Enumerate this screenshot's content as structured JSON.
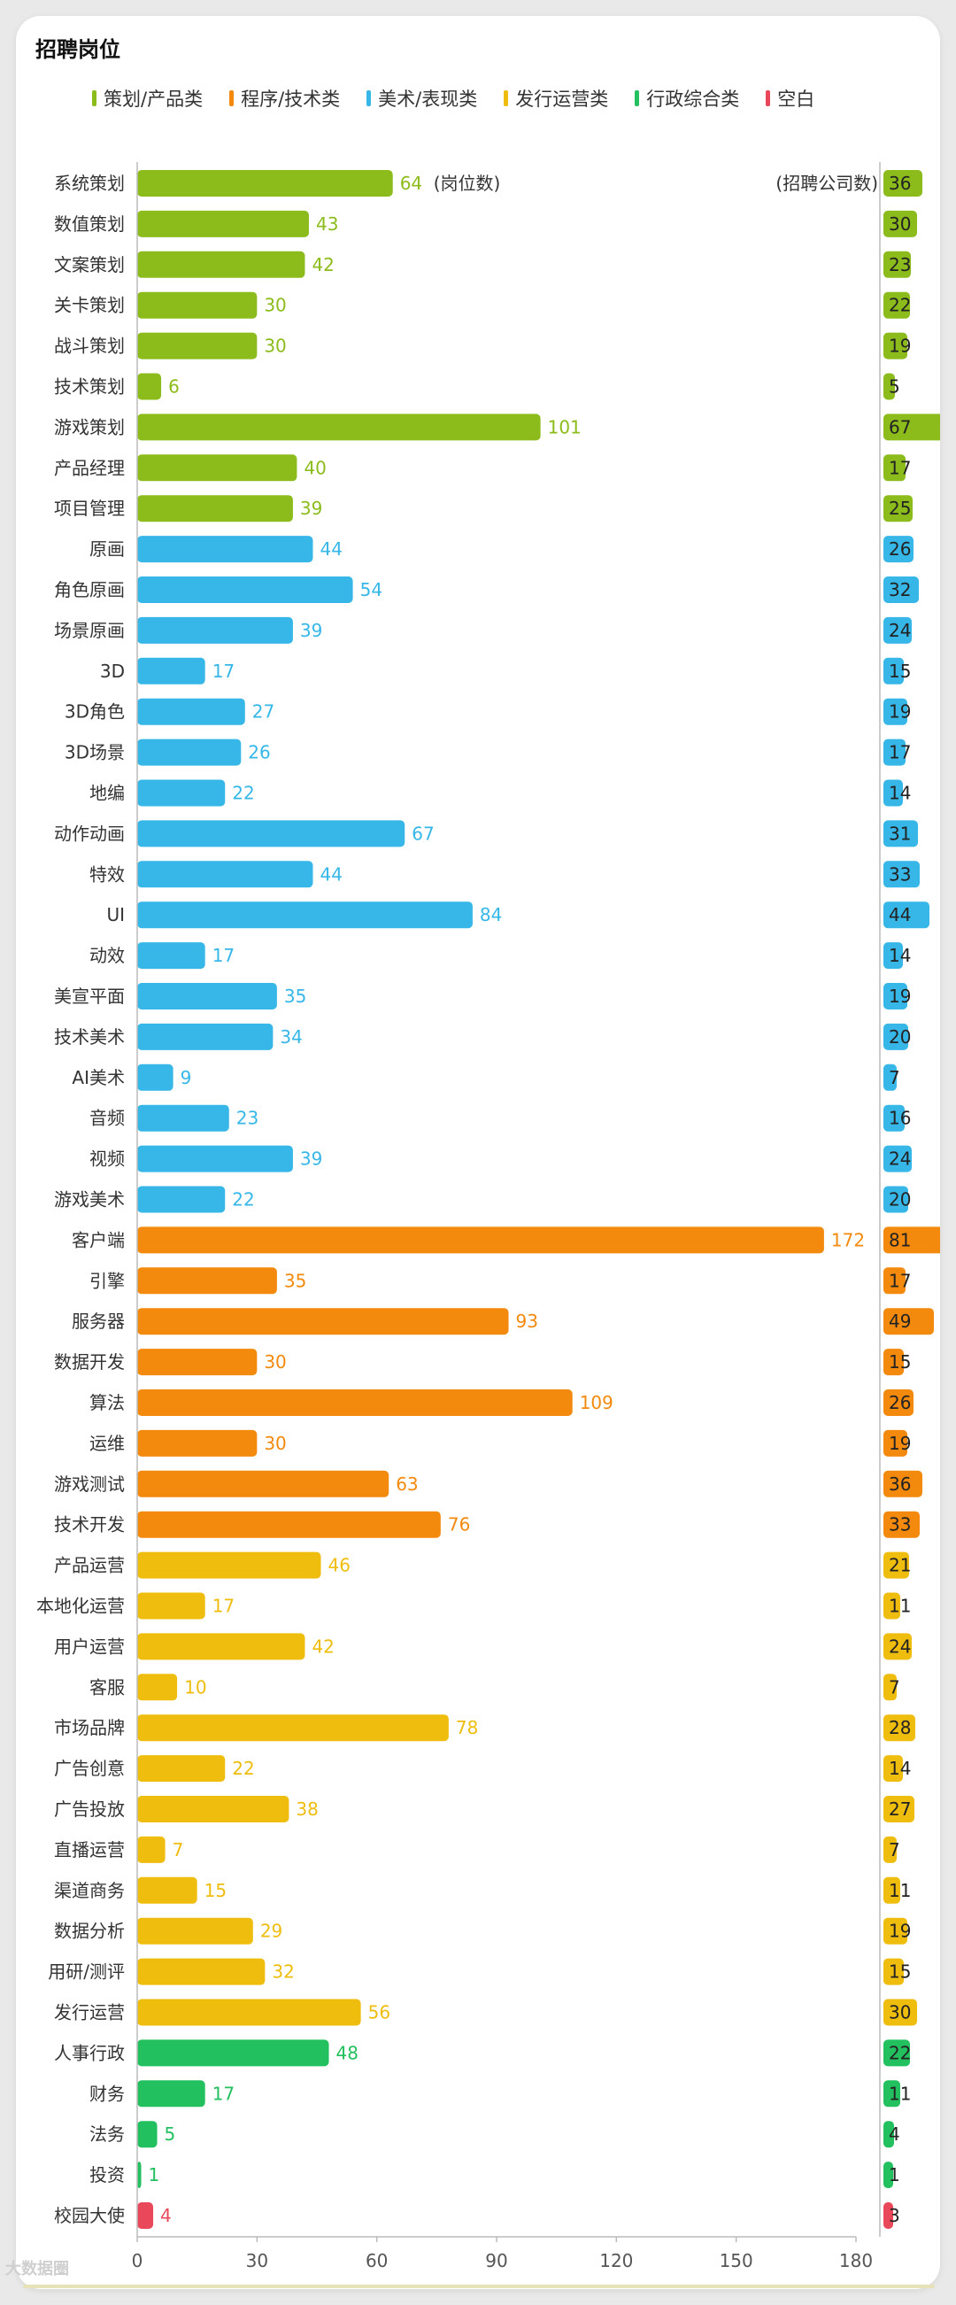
{
  "colors": {
    "planning": "#8cbc1c",
    "tech": "#f38a0e",
    "art": "#36b7e8",
    "ops": "#efbd0e",
    "admin": "#22c05e",
    "blank": "#e9485a"
  },
  "chart_data": {
    "type": "bar",
    "orientation": "horizontal",
    "title": "招聘岗位",
    "legend": [
      {
        "key": "planning",
        "label": "策划/产品类"
      },
      {
        "key": "tech",
        "label": "程序/技术类"
      },
      {
        "key": "art",
        "label": "美术/表现类"
      },
      {
        "key": "ops",
        "label": "发行运营类"
      },
      {
        "key": "admin",
        "label": "行政综合类"
      },
      {
        "key": "blank",
        "label": "空白"
      }
    ],
    "legend_placement": "top",
    "left_unit_label": "(岗位数)",
    "right_unit_label": "(招聘公司数)",
    "xlim": [
      0,
      180
    ],
    "xticks": [
      0,
      30,
      60,
      90,
      120,
      150,
      180
    ],
    "grid": false,
    "categories": [
      "系统策划",
      "数值策划",
      "文案策划",
      "关卡策划",
      "战斗策划",
      "技术策划",
      "游戏策划",
      "产品经理",
      "项目管理",
      "原画",
      "角色原画",
      "场景原画",
      "3D",
      "3D角色",
      "3D场景",
      "地编",
      "动作动画",
      "特效",
      "UI",
      "动效",
      "美宣平面",
      "技术美术",
      "AI美术",
      "音频",
      "视频",
      "游戏美术",
      "客户端",
      "引擎",
      "服务器",
      "数据开发",
      "算法",
      "运维",
      "游戏测试",
      "技术开发",
      "产品运营",
      "本地化运营",
      "用户运营",
      "客服",
      "市场品牌",
      "广告创意",
      "广告投放",
      "直播运营",
      "渠道商务",
      "数据分析",
      "用研/测评",
      "发行运营",
      "人事行政",
      "财务",
      "法务",
      "投资",
      "校园大使"
    ],
    "group": [
      "planning",
      "planning",
      "planning",
      "planning",
      "planning",
      "planning",
      "planning",
      "planning",
      "planning",
      "art",
      "art",
      "art",
      "art",
      "art",
      "art",
      "art",
      "art",
      "art",
      "art",
      "art",
      "art",
      "art",
      "art",
      "art",
      "art",
      "art",
      "tech",
      "tech",
      "tech",
      "tech",
      "tech",
      "tech",
      "tech",
      "tech",
      "ops",
      "ops",
      "ops",
      "ops",
      "ops",
      "ops",
      "ops",
      "ops",
      "ops",
      "ops",
      "ops",
      "ops",
      "admin",
      "admin",
      "admin",
      "admin",
      "blank"
    ],
    "series": [
      {
        "name": "岗位数",
        "values": [
          64,
          43,
          42,
          30,
          30,
          6,
          101,
          40,
          39,
          44,
          54,
          39,
          17,
          27,
          26,
          22,
          67,
          44,
          84,
          17,
          35,
          34,
          9,
          23,
          39,
          22,
          172,
          35,
          93,
          30,
          109,
          30,
          63,
          76,
          46,
          17,
          42,
          10,
          78,
          22,
          38,
          7,
          15,
          29,
          32,
          56,
          48,
          17,
          5,
          1,
          4
        ]
      },
      {
        "name": "招聘公司数",
        "values": [
          36,
          30,
          23,
          22,
          19,
          5,
          67,
          17,
          25,
          26,
          32,
          24,
          15,
          19,
          17,
          14,
          31,
          33,
          44,
          14,
          19,
          20,
          7,
          16,
          24,
          20,
          81,
          17,
          49,
          15,
          26,
          19,
          36,
          33,
          21,
          11,
          24,
          7,
          28,
          14,
          27,
          7,
          11,
          19,
          15,
          30,
          22,
          11,
          4,
          1,
          3
        ]
      }
    ]
  },
  "footer": {
    "logo_text": "大数据圈"
  }
}
